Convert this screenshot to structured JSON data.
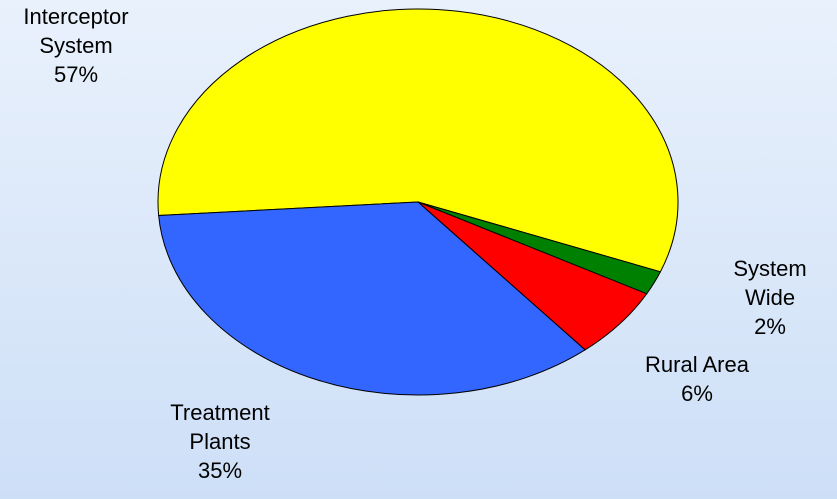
{
  "chart_data": {
    "type": "pie",
    "categories": [
      "Interceptor System",
      "System Wide",
      "Rural Area",
      "Treatment Plants"
    ],
    "values": [
      57,
      2,
      6,
      35
    ],
    "value_labels": [
      "57%",
      "2%",
      "6%",
      "35%"
    ],
    "colors": [
      "#ffff00",
      "#008000",
      "#ff0000",
      "#3366ff"
    ]
  }
}
